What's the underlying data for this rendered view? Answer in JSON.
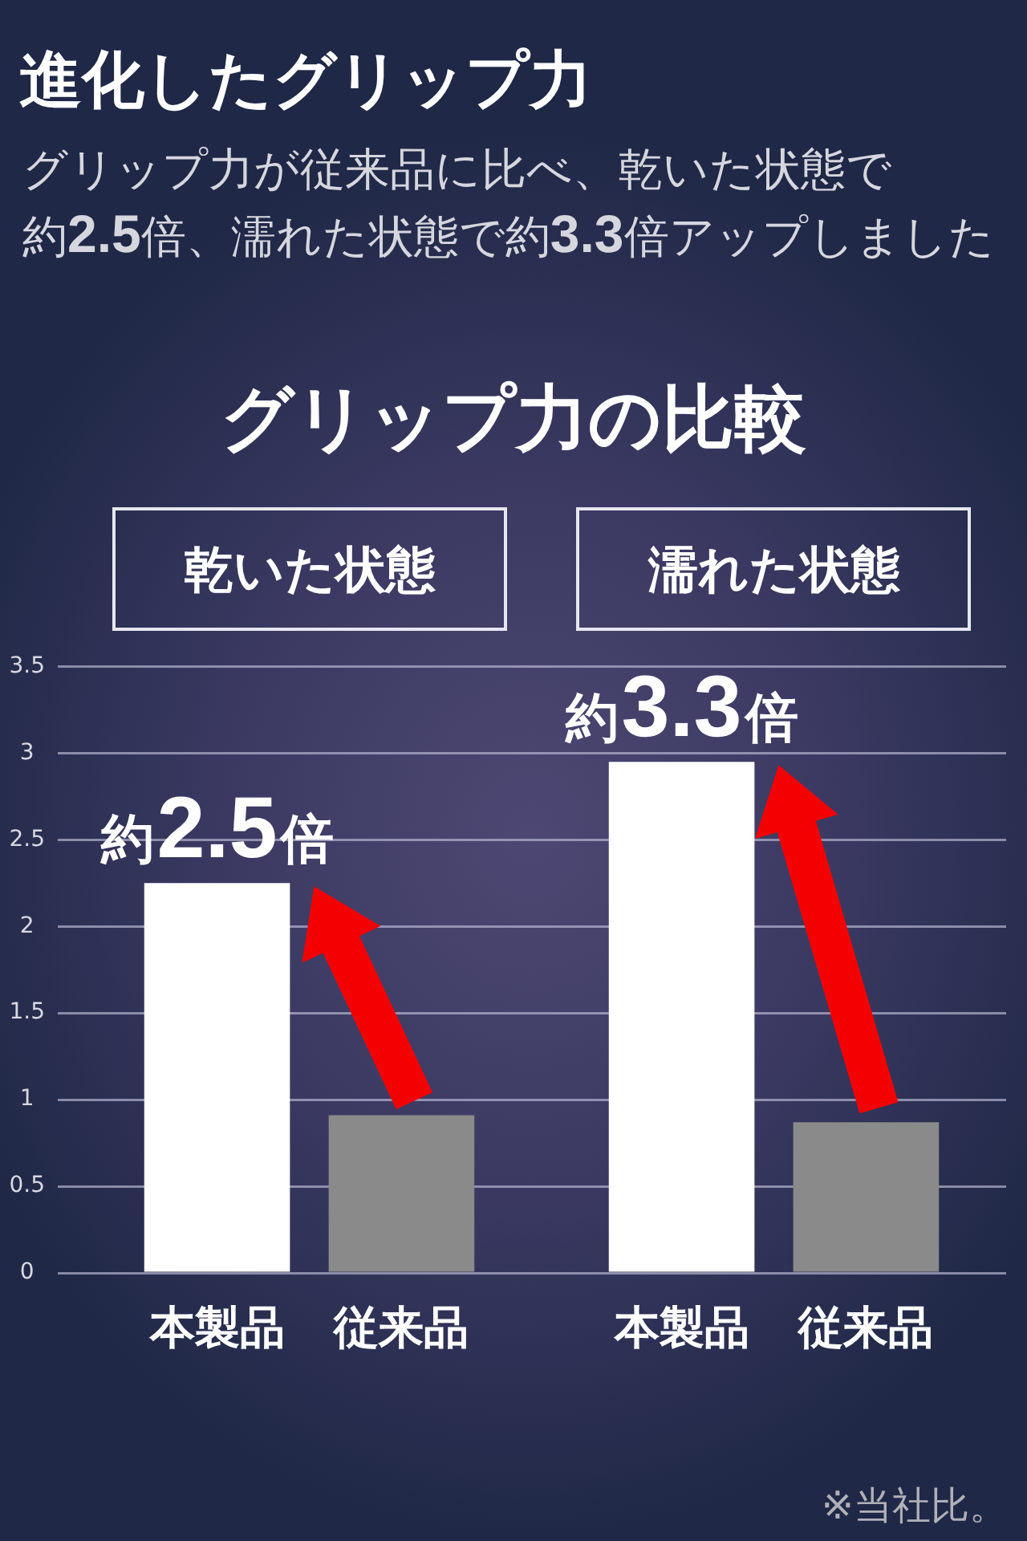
{
  "chart_data": {
    "type": "bar",
    "title": "進化したグリップ力",
    "subtitle": "グリップ力が従来品に比べ、乾いた状態で約2.5倍、濡れた状態で約3.3倍アップしました",
    "categories": [
      "乾いた状態",
      "濡れた状態"
    ],
    "series": [
      {
        "name": "本製品",
        "color": "#ffffff",
        "values": [
          2.25,
          2.95
        ]
      },
      {
        "name": "従来品",
        "color": "#8a8a8a",
        "values": [
          0.91,
          0.87
        ]
      }
    ],
    "ylim": [
      0,
      3.5
    ],
    "yticks": [
      0,
      0.5,
      1,
      1.5,
      2,
      2.5,
      3,
      3.5
    ],
    "grid": "y",
    "annotations": [
      "グリップ力の比較",
      "約2.5倍",
      "約3.3倍",
      "※当社比。"
    ]
  }
}
